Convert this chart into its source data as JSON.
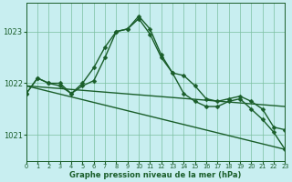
{
  "bg_color": "#c8eef0",
  "plot_bg_color": "#c8eef0",
  "grid_color": "#7bbfa0",
  "line_color": "#1a5e2a",
  "marker_color": "#1a5e2a",
  "xlabel": "Graphe pression niveau de la mer (hPa)",
  "xlabel_color": "#1a5e2a",
  "tick_color": "#1a5e2a",
  "ylim": [
    1020.5,
    1023.55
  ],
  "yticks": [
    1021,
    1022,
    1023
  ],
  "xlim": [
    0,
    23
  ],
  "xticks": [
    0,
    1,
    2,
    3,
    4,
    5,
    6,
    7,
    8,
    9,
    10,
    11,
    12,
    13,
    14,
    15,
    16,
    17,
    18,
    19,
    20,
    21,
    22,
    23
  ],
  "series": [
    {
      "x": [
        0,
        1,
        2,
        3,
        4,
        5,
        6,
        7,
        8,
        9,
        10,
        11,
        12,
        13,
        14,
        15,
        16,
        17,
        18,
        19,
        20,
        21,
        22,
        23
      ],
      "y": [
        1021.8,
        1022.1,
        1022.0,
        1022.0,
        1021.8,
        1021.95,
        1022.05,
        1022.5,
        1023.0,
        1023.05,
        1023.3,
        1023.05,
        1022.55,
        1022.2,
        1022.15,
        1021.95,
        1021.7,
        1021.65,
        1021.7,
        1021.75,
        1021.65,
        1021.5,
        1021.15,
        1021.1
      ],
      "marker": "D",
      "markersize": 2.5,
      "linewidth": 1.0
    },
    {
      "x": [
        0,
        1,
        2,
        3,
        4,
        5,
        6,
        7,
        8,
        9,
        10,
        11,
        12,
        13,
        14,
        15,
        16,
        17,
        18,
        19,
        20,
        21,
        22,
        23
      ],
      "y": [
        1021.8,
        1022.1,
        1022.0,
        1021.95,
        1021.8,
        1022.0,
        1022.3,
        1022.7,
        1023.0,
        1023.05,
        1023.25,
        1022.95,
        1022.5,
        1022.2,
        1021.8,
        1021.65,
        1021.55,
        1021.55,
        1021.65,
        1021.7,
        1021.5,
        1021.3,
        1021.05,
        1020.72
      ],
      "marker": "D",
      "markersize": 2.5,
      "linewidth": 1.0
    },
    {
      "x": [
        0,
        23
      ],
      "y": [
        1021.95,
        1020.72
      ],
      "marker": null,
      "markersize": 0,
      "linewidth": 1.0
    },
    {
      "x": [
        0,
        23
      ],
      "y": [
        1021.95,
        1021.55
      ],
      "marker": null,
      "markersize": 0,
      "linewidth": 1.0
    }
  ]
}
